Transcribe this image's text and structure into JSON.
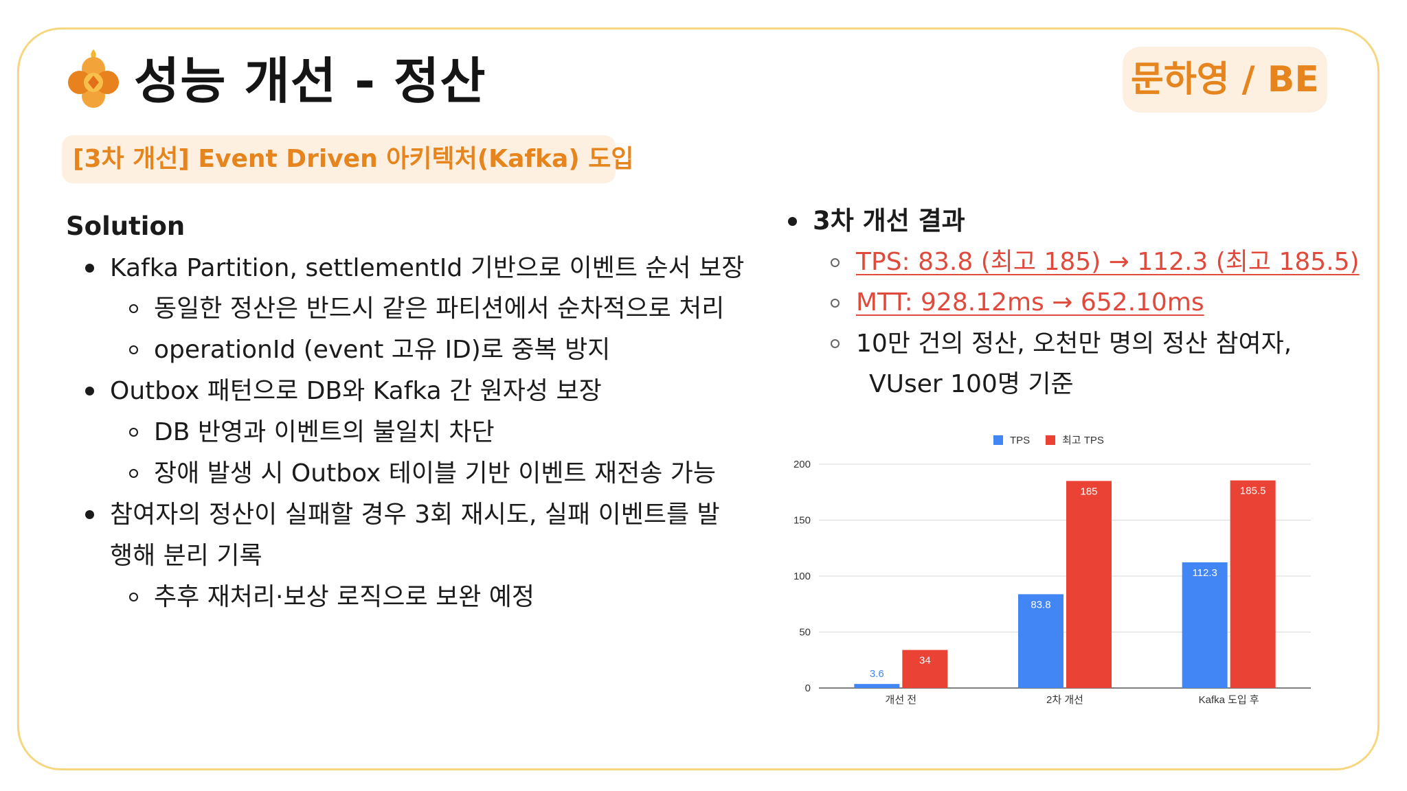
{
  "slide": {
    "title": "성능 개선 - 정산",
    "badge": "문하영 / BE",
    "subtitle": "[3차 개선] Event Driven 아키텍처(Kafka) 도입"
  },
  "left": {
    "heading": "Solution",
    "items": [
      {
        "level": 1,
        "text": "Kafka Partition, settlementId 기반으로 이벤트 순서 보장"
      },
      {
        "level": 2,
        "text": "동일한 정산은 반드시 같은 파티션에서 순차적으로 처리"
      },
      {
        "level": 2,
        "text": "operationId (event 고유 ID)로 중복 방지"
      },
      {
        "level": 1,
        "text": "Outbox 패턴으로 DB와 Kafka 간 원자성 보장"
      },
      {
        "level": 2,
        "text": "DB 반영과 이벤트의 불일치 차단"
      },
      {
        "level": 2,
        "text": "장애 발생 시 Outbox 테이블 기반 이벤트 재전송 가능"
      },
      {
        "level": 1,
        "text": "참여자의 정산이 실패할 경우 3회 재시도, 실패 이벤트를 발"
      },
      {
        "level": 0,
        "text": "행해 분리 기록"
      },
      {
        "level": 2,
        "text": "추후 재처리·보상 로직으로 보완 예정"
      }
    ]
  },
  "right": {
    "heading": "3차 개선 결과",
    "items": [
      {
        "text": "TPS: 83.8 (최고 185) → 112.3 (최고 185.5)",
        "style": "red"
      },
      {
        "text": "MTT: 928.12ms → 652.10ms",
        "style": "red"
      },
      {
        "text": "10만 건의 정산, 오천만 명의 정산 참여자,",
        "style": "normal"
      },
      {
        "text": "VUser 100명 기준",
        "style": "cont"
      }
    ]
  },
  "colors": {
    "accent": "#e6841e",
    "badge_bg": "#fdf0e0",
    "frame_border": "#f6d67e",
    "link_red": "#e04a3c",
    "tps_blue": "#4285f4",
    "max_red": "#ea4335"
  },
  "icons": [
    "flower-logo-icon"
  ],
  "chart_data": {
    "type": "bar",
    "categories": [
      "개선 전",
      "2차 개선",
      "Kafka 도입 후"
    ],
    "series": [
      {
        "name": "TPS",
        "values": [
          3.6,
          83.8,
          112.3
        ],
        "color": "#4285f4"
      },
      {
        "name": "최고 TPS",
        "values": [
          34,
          185,
          185.5
        ],
        "color": "#ea4335"
      }
    ],
    "yticks": [
      0,
      50,
      100,
      150,
      200
    ],
    "ylim": [
      0,
      200
    ],
    "legend": "top-center",
    "grid": true
  }
}
